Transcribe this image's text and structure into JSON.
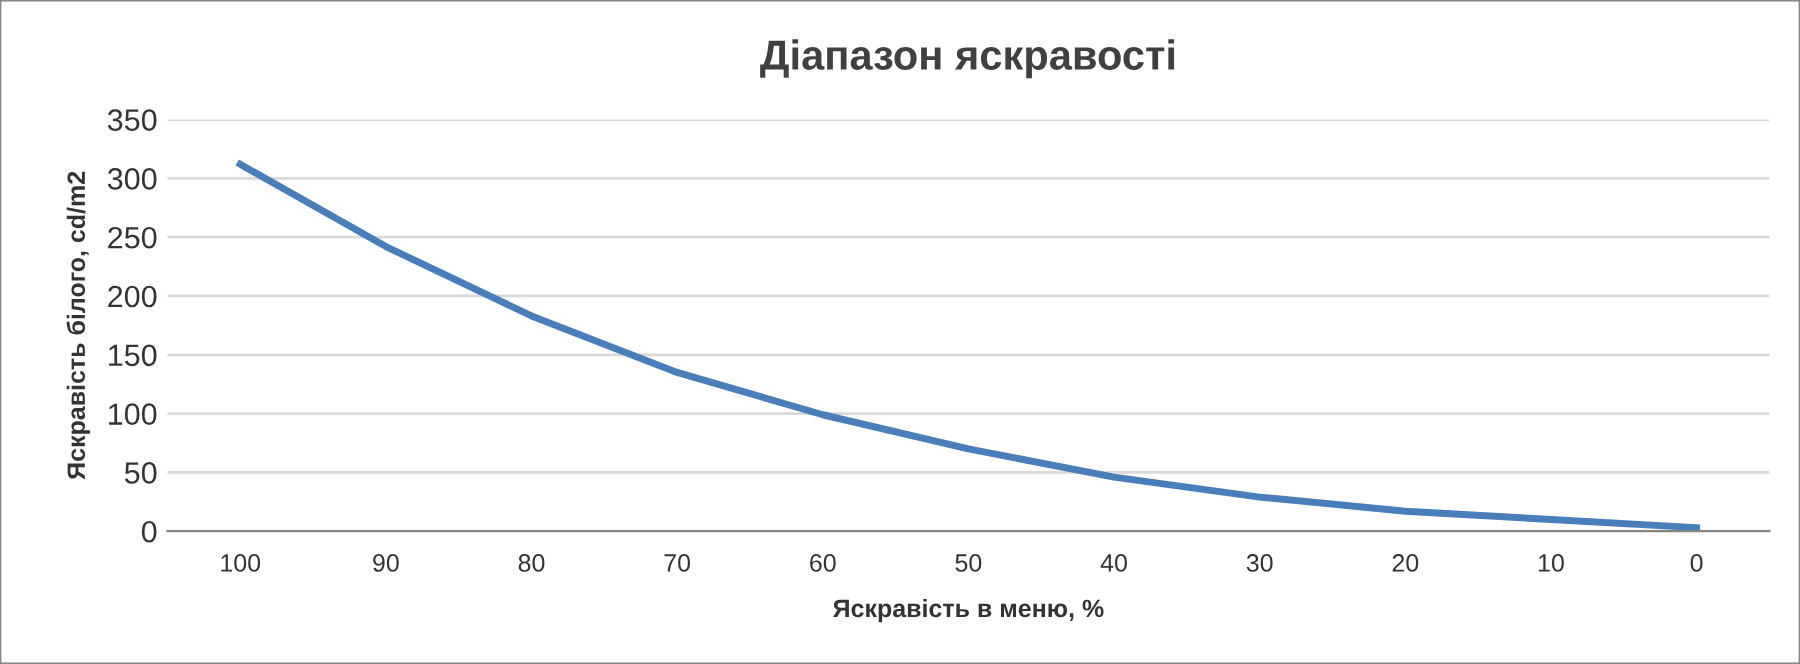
{
  "chart_data": {
    "type": "line",
    "title": "Діапазон яскравості",
    "xlabel": "Яскравість в меню, %",
    "ylabel": "Яскравість білого, cd/m2",
    "categories": [
      "100",
      "90",
      "80",
      "70",
      "60",
      "50",
      "40",
      "30",
      "20",
      "10",
      "0"
    ],
    "series": [
      {
        "color": "#4a7ebb",
        "values": [
          312,
          242,
          183,
          135,
          99,
          70,
          46,
          29,
          17,
          10,
          3
        ]
      }
    ],
    "ylim": [
      0,
      350
    ],
    "yticks": [
      0,
      50,
      100,
      150,
      200,
      250,
      300,
      350
    ],
    "grid": "y",
    "legend": false,
    "marker": "none",
    "line_style": "solid"
  }
}
